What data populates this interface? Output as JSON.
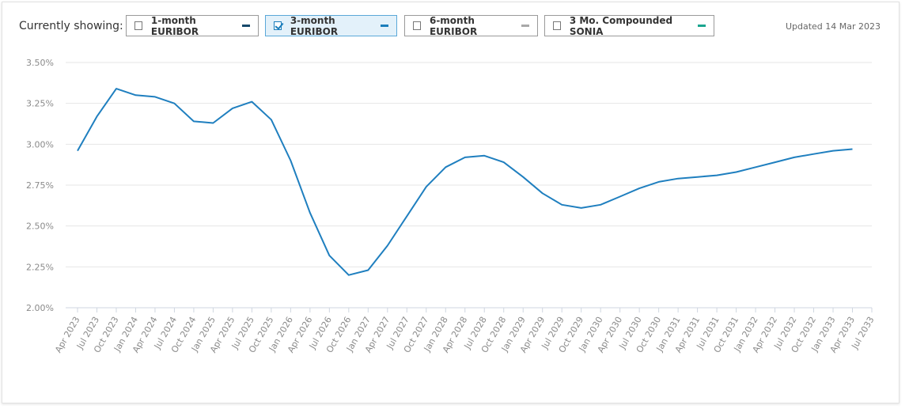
{
  "chart_data": {
    "type": "line",
    "controls_label": "Currently showing:",
    "updated": "Updated 14 Mar 2023",
    "buttons": [
      {
        "name": "1-month EURIBOR",
        "color": "#17496b",
        "checked": false
      },
      {
        "name": "3-month EURIBOR",
        "color": "#1a7dbb",
        "checked": true
      },
      {
        "name": "6-month EURIBOR",
        "color": "#a8a8a8",
        "checked": false
      },
      {
        "name": "3 Mo. Compounded SONIA",
        "color": "#1aa58f",
        "checked": false
      }
    ],
    "categories": [
      "Apr 2023",
      "Jul 2023",
      "Oct 2023",
      "Jan 2024",
      "Apr 2024",
      "Jul 2024",
      "Oct 2024",
      "Jan 2025",
      "Apr 2025",
      "Jul 2025",
      "Oct 2025",
      "Jan 2026",
      "Apr 2026",
      "Jul 2026",
      "Oct 2026",
      "Jan 2027",
      "Apr 2027",
      "Jul 2027",
      "Oct 2027",
      "Jan 2028",
      "Apr 2028",
      "Jul 2028",
      "Oct 2028",
      "Jan 2029",
      "Apr 2029",
      "Jul 2029",
      "Oct 2029",
      "Jan 2030",
      "Apr 2030",
      "Jul 2030",
      "Oct 2030",
      "Jan 2031",
      "Apr 2031",
      "Jul 2031",
      "Oct 2031",
      "Jan 2032",
      "Apr 2032",
      "Jul 2032",
      "Oct 2032",
      "Jan 2033",
      "Apr 2033",
      "Jul 2033"
    ],
    "series": [
      {
        "name": "3-month EURIBOR",
        "color": "#1f7fbf",
        "values": [
          2.96,
          3.17,
          3.34,
          3.3,
          3.29,
          3.25,
          3.14,
          3.13,
          3.22,
          3.26,
          3.15,
          2.9,
          2.58,
          2.32,
          2.2,
          2.23,
          2.38,
          2.56,
          2.74,
          2.86,
          2.92,
          2.93,
          2.89,
          2.8,
          2.7,
          2.63,
          2.61,
          2.63,
          2.68,
          2.73,
          2.77,
          2.79,
          2.8,
          2.81,
          2.83,
          2.86,
          2.89,
          2.92,
          2.94,
          2.96,
          2.97,
          null
        ]
      }
    ],
    "ylim": [
      2.0,
      3.5
    ],
    "yticks": [
      {
        "value": 2.0,
        "label": "2.00%"
      },
      {
        "value": 2.25,
        "label": "2.25%"
      },
      {
        "value": 2.5,
        "label": "2.50%"
      },
      {
        "value": 2.75,
        "label": "2.75%"
      },
      {
        "value": 3.0,
        "label": "3.00%"
      },
      {
        "value": 3.25,
        "label": "3.25%"
      },
      {
        "value": 3.5,
        "label": "3.50%"
      }
    ],
    "grid": true
  }
}
